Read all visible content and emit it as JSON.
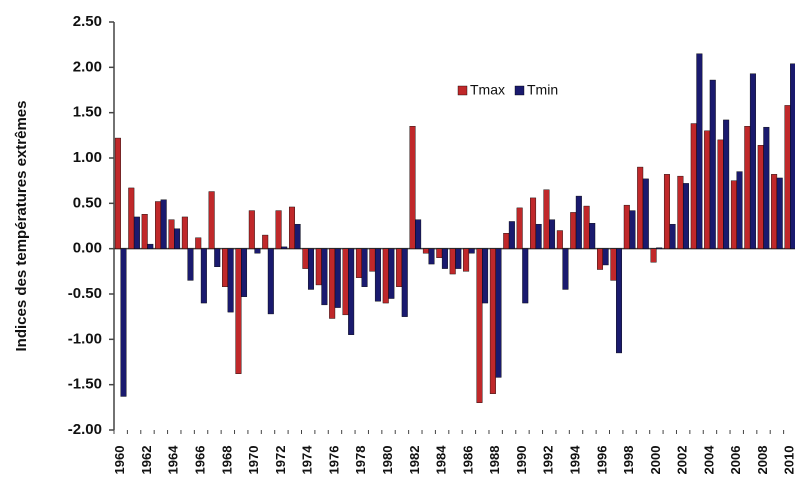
{
  "chart_data": {
    "type": "bar",
    "y_label": "Indices des températures extrêmes",
    "categories": [
      "1960",
      null,
      "1962",
      null,
      "1964",
      null,
      "1966",
      null,
      "1968",
      null,
      "1970",
      null,
      "1972",
      null,
      "1974",
      null,
      "1976",
      null,
      "1978",
      null,
      "1980",
      null,
      "1982",
      null,
      "1984",
      null,
      "1986",
      null,
      "1988",
      null,
      "1990",
      null,
      "1992",
      null,
      "1994",
      null,
      "1996",
      null,
      "1998",
      null,
      "2000",
      null,
      "2002",
      null,
      "2004",
      null,
      "2006",
      null,
      "2008",
      null,
      "2010"
    ],
    "series": [
      {
        "name": "Tmax",
        "color": "#c0282a",
        "values": [
          1.22,
          0.67,
          0.38,
          0.52,
          0.32,
          0.35,
          0.12,
          0.63,
          -0.42,
          -1.38,
          0.42,
          0.15,
          0.42,
          0.46,
          -0.22,
          -0.4,
          -0.77,
          -0.73,
          -0.32,
          -0.25,
          -0.6,
          -0.42,
          1.35,
          -0.05,
          -0.1,
          -0.28,
          -0.25,
          -1.7,
          -1.6,
          0.17,
          0.45,
          0.56,
          0.65,
          0.2,
          0.4,
          0.47,
          -0.23,
          -0.35,
          0.48,
          0.9,
          -0.15,
          0.82,
          0.8,
          1.38,
          1.3,
          1.2,
          0.75,
          1.35,
          1.14,
          0.82,
          1.58
        ]
      },
      {
        "name": "Tmin",
        "color": "#1a1a6e",
        "values": [
          -1.63,
          0.35,
          0.05,
          0.54,
          0.22,
          -0.35,
          -0.6,
          -0.2,
          -0.7,
          -0.53,
          -0.05,
          -0.72,
          0.02,
          0.27,
          -0.45,
          -0.62,
          -0.65,
          -0.95,
          -0.42,
          -0.58,
          -0.55,
          -0.75,
          0.32,
          -0.17,
          -0.22,
          -0.22,
          -0.05,
          -0.6,
          -1.42,
          0.3,
          -0.6,
          0.27,
          0.32,
          -0.45,
          0.58,
          0.28,
          -0.18,
          -1.15,
          0.42,
          0.77,
          0.01,
          0.27,
          0.72,
          2.15,
          1.86,
          1.42,
          0.85,
          1.93,
          1.34,
          0.78,
          2.04
        ]
      }
    ],
    "ylim": [
      -2.0,
      2.5
    ],
    "yticks": [
      {
        "value": -2.0,
        "label": "-2.00"
      },
      {
        "value": -1.5,
        "label": "-1.50"
      },
      {
        "value": -1.0,
        "label": "-1.00"
      },
      {
        "value": -0.5,
        "label": "-0.50"
      },
      {
        "value": 0,
        "label": "0.00"
      },
      {
        "value": 0.5,
        "label": "0.50"
      },
      {
        "value": 1.0,
        "label": "1.00"
      },
      {
        "value": 1.5,
        "label": "1.50"
      },
      {
        "value": 2.0,
        "label": "2.00"
      },
      {
        "value": 2.5,
        "label": "2.50"
      }
    ],
    "grid": false
  }
}
